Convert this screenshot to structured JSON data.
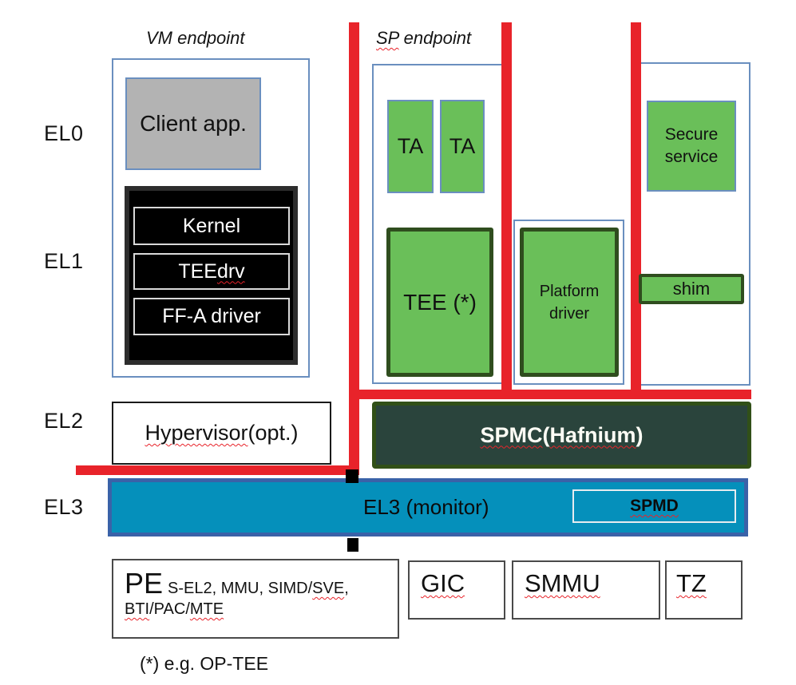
{
  "colors": {
    "green_fill": "#6abf59",
    "dark_green_border": "#2f4d1e",
    "container_border": "#6a8fbf",
    "client_app_fill": "#b3b3b3",
    "spmc_fill": "#2a443c",
    "el3_fill": "#0590bb",
    "el3_border": "#3a62a8",
    "red_line": "#e8232a"
  },
  "left_labels": {
    "el0": "EL0",
    "el1": "EL1",
    "el2": "EL2",
    "el3": "EL3"
  },
  "headers": {
    "vm_endpoint": "VM endpoint",
    "sp_endpoint": [
      {
        "t": "SP",
        "u": true
      },
      {
        "t": " endpoint",
        "u": false
      }
    ]
  },
  "vm": {
    "client_app": "Client app.",
    "kernel": "Kernel",
    "tee_drv": [
      {
        "t": "TEE ",
        "u": false
      },
      {
        "t": "drv",
        "u": true
      }
    ],
    "ffa_driver": "FF-A driver",
    "hypervisor": [
      {
        "t": "Hypervisor",
        "u": true
      },
      {
        "t": " (opt.)",
        "u": false
      }
    ]
  },
  "sp": {
    "ta_1": "TA",
    "ta_2": "TA",
    "tee": "TEE (*)",
    "platform_driver": "Platform driver",
    "secure_service": "Secure service",
    "shim": "shim"
  },
  "firmware": {
    "spmc": [
      {
        "t": "SPMC",
        "u": true
      },
      {
        "t": " (",
        "u": false
      },
      {
        "t": "Hafnium",
        "u": true
      },
      {
        "t": ")",
        "u": false
      }
    ],
    "el3_monitor": "EL3 (monitor)",
    "spmd": [
      {
        "t": "SPMD",
        "u": true
      }
    ]
  },
  "hardware": {
    "pe": "PE",
    "pe_features_line1": [
      {
        "t": "S-EL2, MMU, SIMD/",
        "u": false
      },
      {
        "t": "SVE",
        "u": true
      },
      {
        "t": ",",
        "u": false
      }
    ],
    "pe_features_line2": [
      {
        "t": "BTI",
        "u": true
      },
      {
        "t": "/PAC/",
        "u": false
      },
      {
        "t": "MTE",
        "u": true
      }
    ],
    "gic": [
      {
        "t": "GIC",
        "u": true
      }
    ],
    "smmu": [
      {
        "t": "SMMU",
        "u": true
      }
    ],
    "tz": [
      {
        "t": "TZ",
        "u": true
      }
    ]
  },
  "footnote": "(*) e.g. OP-TEE"
}
